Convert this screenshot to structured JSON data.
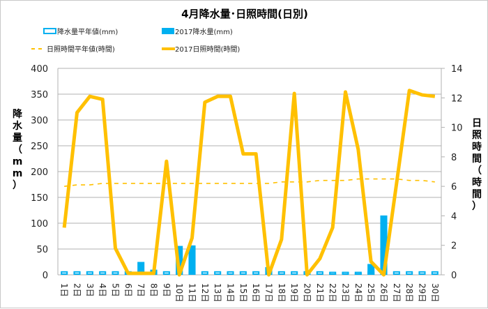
{
  "chart_data": {
    "type": "bar+line",
    "title": "4月降水量･日照時間(日別)",
    "ylabel_left": "降水量（mm）",
    "ylabel_right": "日照時間（時間）",
    "ylim_left": [
      0,
      400
    ],
    "ylim_right": [
      0,
      14
    ],
    "yticks_left": [
      "0",
      "50",
      "100",
      "150",
      "200",
      "250",
      "300",
      "350",
      "400"
    ],
    "yticks_right": [
      "0",
      "2",
      "4",
      "6",
      "8",
      "10",
      "12",
      "14"
    ],
    "grid": true,
    "categories": [
      "1日",
      "2日",
      "3日",
      "4日",
      "5日",
      "6日",
      "7日",
      "8日",
      "9日",
      "10日",
      "11日",
      "12日",
      "13日",
      "14日",
      "15日",
      "16日",
      "17日",
      "18日",
      "19日",
      "20日",
      "21日",
      "22日",
      "23日",
      "24日",
      "25日",
      "26日",
      "27日",
      "28日",
      "29日",
      "30日"
    ],
    "series": [
      {
        "name": "降水量平年値(mm)",
        "type": "bar-outline",
        "axis": "left",
        "color": "#00b0f0",
        "values": [
          7,
          7,
          7,
          7,
          7,
          7,
          7,
          7,
          7,
          7,
          7,
          7,
          7,
          7,
          7,
          7,
          7,
          7,
          7,
          7,
          7,
          6,
          6,
          6,
          7,
          7,
          7,
          7,
          7,
          7
        ]
      },
      {
        "name": "2017降水量(mm)",
        "type": "bar",
        "axis": "left",
        "color": "#00b0f0",
        "values": [
          0,
          0,
          0,
          0,
          0,
          1,
          25,
          10,
          0,
          56,
          57,
          0,
          0,
          0,
          0,
          0,
          15,
          0,
          0,
          0,
          0,
          2,
          0,
          3,
          21,
          115,
          0,
          0,
          0,
          0
        ]
      },
      {
        "name": "日照時間平年値(時間)",
        "type": "line-dashed",
        "axis": "right",
        "color": "#ffc000",
        "values": [
          6.0,
          6.1,
          6.1,
          6.2,
          6.2,
          6.2,
          6.2,
          6.2,
          6.2,
          6.2,
          6.2,
          6.2,
          6.2,
          6.2,
          6.2,
          6.2,
          6.2,
          6.3,
          6.3,
          6.3,
          6.4,
          6.4,
          6.4,
          6.5,
          6.5,
          6.5,
          6.5,
          6.4,
          6.4,
          6.3
        ]
      },
      {
        "name": "2017日照時間(時間)",
        "type": "line",
        "axis": "right",
        "color": "#ffc000",
        "values": [
          3.2,
          11.0,
          12.1,
          11.9,
          1.8,
          0.1,
          0.1,
          0.1,
          7.7,
          0.0,
          2.5,
          11.7,
          12.1,
          12.1,
          8.2,
          8.2,
          0.0,
          2.4,
          12.3,
          0.0,
          1.1,
          3.2,
          12.4,
          8.5,
          0.9,
          0.0,
          6.2,
          12.5,
          12.2,
          12.1
        ]
      }
    ]
  }
}
